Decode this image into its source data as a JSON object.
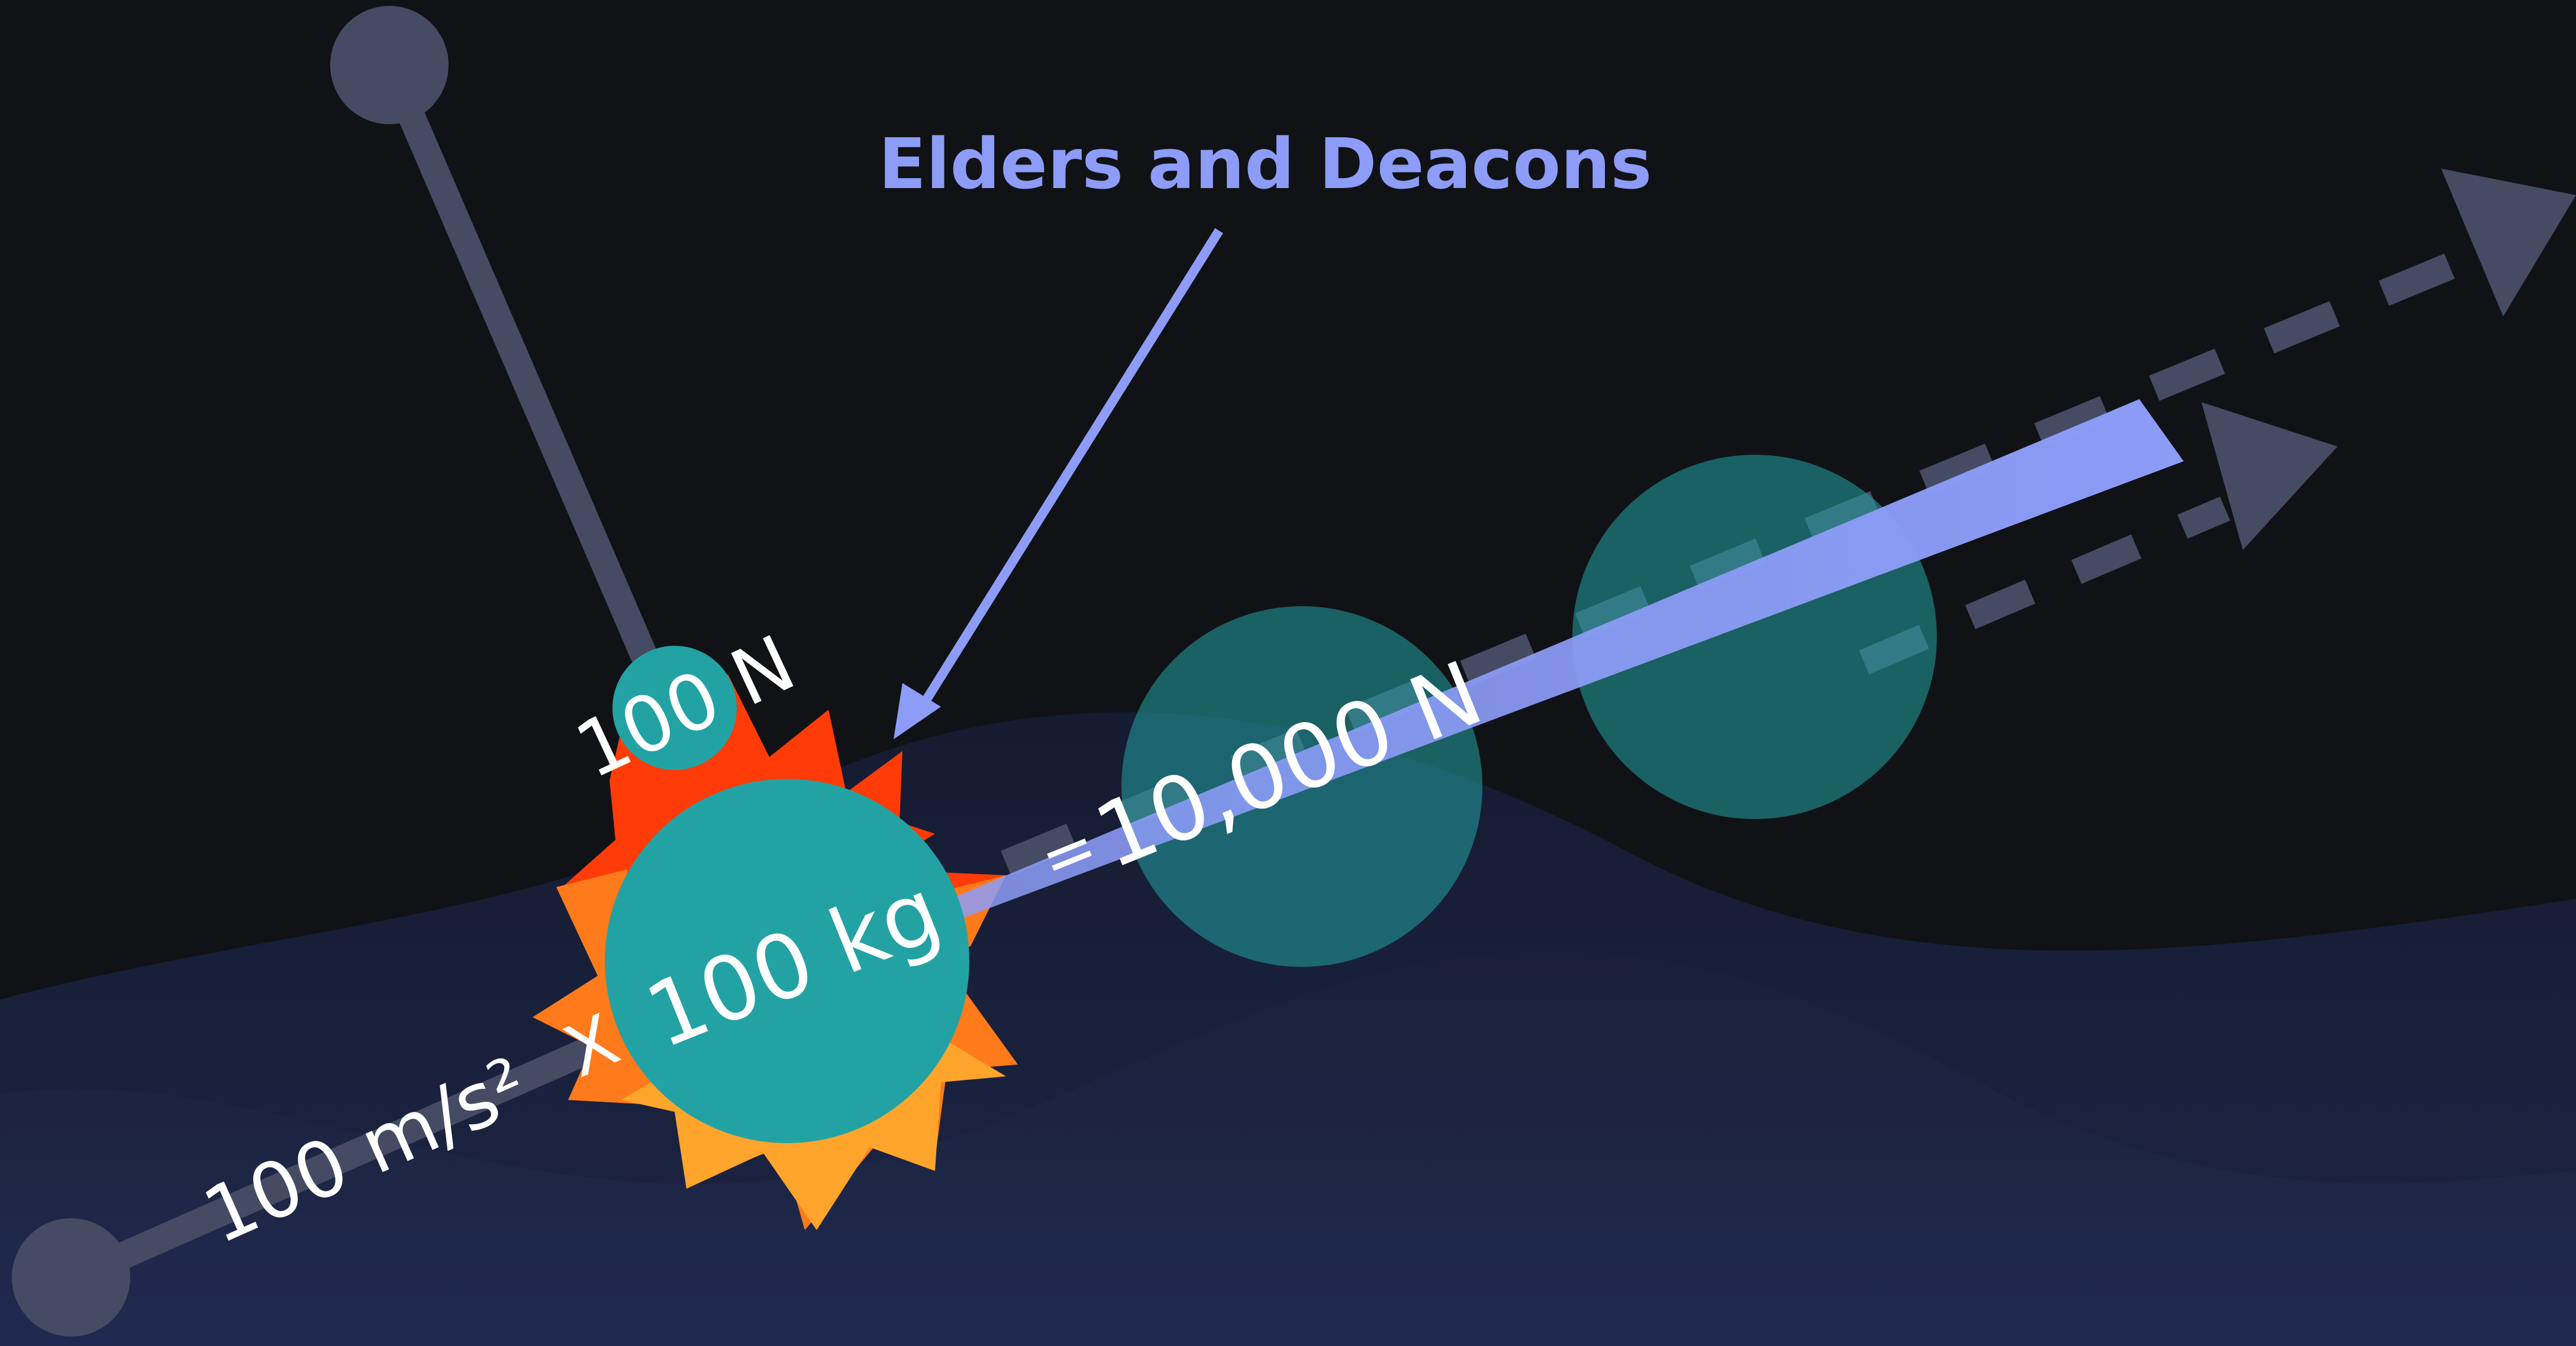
{
  "title": "Elders and Deacons",
  "labels": {
    "mass": "100 kg",
    "force_small": "100 N",
    "acceleration": "100 m/s²",
    "times_sign": "X",
    "equals_sign": "=",
    "force_large": "10,000 N"
  },
  "colors": {
    "background": "#111216",
    "title": "#8c9cf7",
    "arrow": "#8c9cf7",
    "ball": "#23a2a4",
    "ball_faded": "#1f5f62",
    "stick": "#454b63",
    "wave": "#1c2340",
    "explosion_red": "#ff3b07",
    "explosion_orange": "#ff7a1a",
    "explosion_yellow": "#ffa52c"
  }
}
